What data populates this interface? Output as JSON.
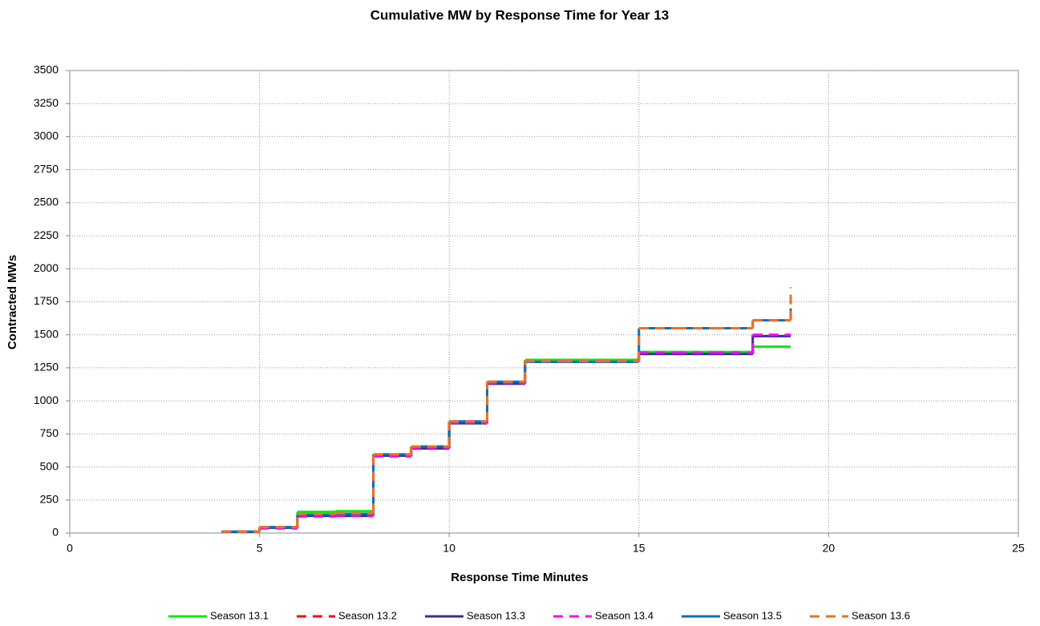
{
  "chart_data": {
    "type": "step",
    "title": "Cumulative MW by Response Time for Year 13",
    "x_label": "Response Time Minutes",
    "y_label": "Contracted MWs",
    "x": [
      4,
      5,
      6,
      7,
      8,
      9,
      10,
      11,
      12,
      13,
      14,
      15,
      16,
      17,
      18,
      19
    ],
    "series": [
      {
        "name": "Season 13.1",
        "color": "#00ee00",
        "dashed": false,
        "values": [
          10,
          40,
          160,
          165,
          590,
          650,
          840,
          1140,
          1310,
          1310,
          1310,
          1370,
          1370,
          1370,
          1410,
          1410
        ]
      },
      {
        "name": "Season 13.2",
        "color": "#ff0000",
        "dashed": true,
        "values": [
          10,
          40,
          130,
          135,
          590,
          650,
          840,
          1140,
          1300,
          1300,
          1300,
          1360,
          1360,
          1360,
          1500,
          1500
        ]
      },
      {
        "name": "Season 13.3",
        "color": "#333399",
        "dashed": false,
        "values": [
          10,
          40,
          130,
          130,
          585,
          640,
          830,
          1130,
          1295,
          1295,
          1295,
          1355,
          1355,
          1355,
          1490,
          1490
        ]
      },
      {
        "name": "Season 13.4",
        "color": "#ff00ff",
        "dashed": true,
        "values": [
          10,
          35,
          125,
          130,
          580,
          645,
          835,
          1135,
          1300,
          1300,
          1300,
          1365,
          1365,
          1365,
          1500,
          1500
        ]
      },
      {
        "name": "Season 13.5",
        "color": "#0070c0",
        "dashed": false,
        "values": [
          10,
          45,
          140,
          145,
          595,
          655,
          845,
          1145,
          1295,
          1295,
          1295,
          1550,
          1550,
          1550,
          1610,
          1700
        ]
      },
      {
        "name": "Season 13.6",
        "color": "#f07020",
        "dashed": true,
        "values": [
          10,
          45,
          145,
          150,
          595,
          655,
          845,
          1145,
          1300,
          1300,
          1300,
          1550,
          1550,
          1550,
          1610,
          1860
        ]
      }
    ],
    "xlim": [
      0,
      25
    ],
    "xticks": [
      0,
      5,
      10,
      15,
      20,
      25
    ],
    "ylim": [
      0,
      3500
    ],
    "yticks": [
      0,
      250,
      500,
      750,
      1000,
      1250,
      1500,
      1750,
      2000,
      2250,
      2500,
      2750,
      3000,
      3250,
      3500
    ],
    "grid": true,
    "legend": "bottom"
  }
}
